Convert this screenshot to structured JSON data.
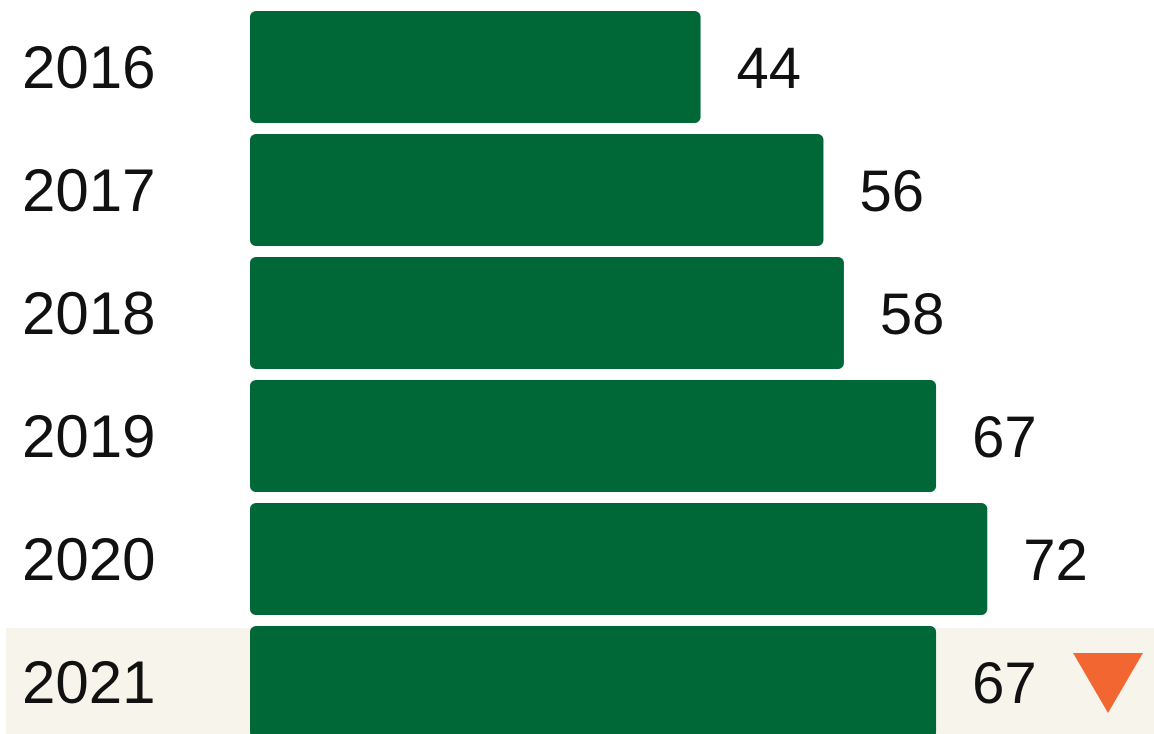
{
  "chart_data": {
    "type": "bar",
    "orientation": "horizontal",
    "categories": [
      "2016",
      "2017",
      "2018",
      "2019",
      "2020",
      "2021"
    ],
    "values": [
      44,
      56,
      58,
      67,
      72,
      67
    ],
    "value_labels": [
      "44",
      "56",
      "58",
      "67",
      "72",
      "67"
    ],
    "title": "",
    "xlabel": "",
    "ylabel": "",
    "xlim": [
      0,
      100
    ],
    "grid": false,
    "legend": "none",
    "highlight_category": "2021",
    "trend_indicator": {
      "category": "2021",
      "direction": "down",
      "icon": "down-triangle-icon"
    },
    "colors": {
      "bar": "#006837",
      "highlight_row": "#f7f4ec",
      "trend_down": "#f26631"
    }
  }
}
